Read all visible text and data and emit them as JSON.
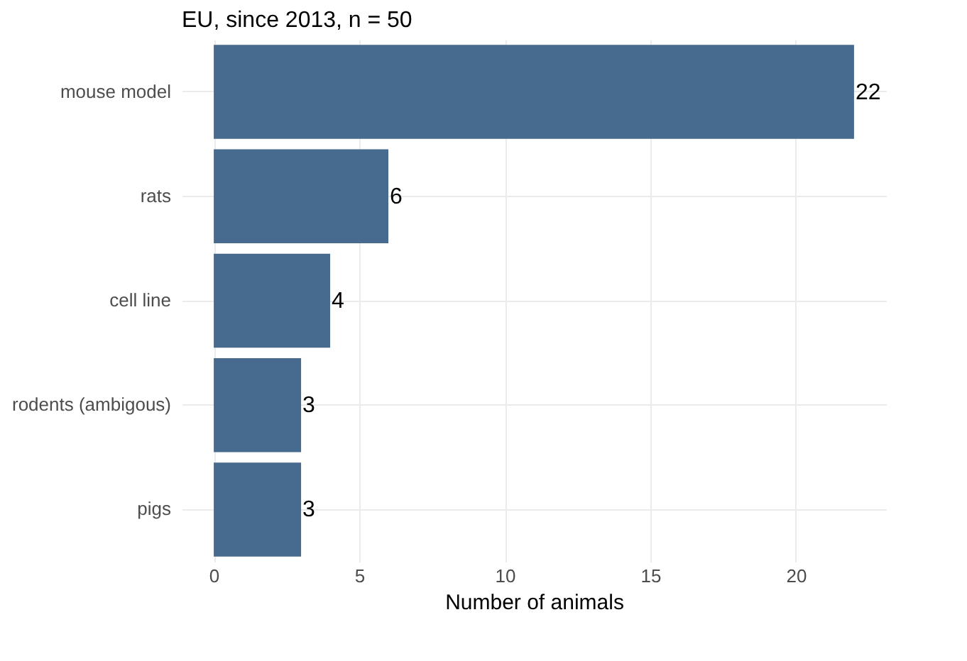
{
  "chart_data": {
    "type": "bar",
    "orientation": "horizontal",
    "title": "EU, since 2013, n = 50",
    "xlabel": "Number of animals",
    "categories": [
      "mouse model",
      "rats",
      "cell line",
      "rodents (ambigous)",
      "pigs"
    ],
    "values": [
      22,
      6,
      4,
      3,
      3
    ],
    "color": "#476a8f",
    "data_labels": true,
    "xlim": [
      -1.1,
      23.1
    ],
    "xticks": [
      0,
      5,
      10,
      15,
      20
    ],
    "grid": true
  }
}
